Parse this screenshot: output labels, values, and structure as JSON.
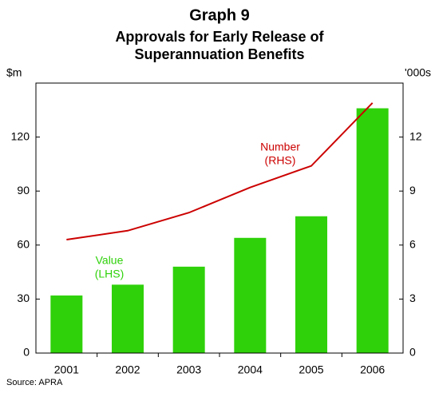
{
  "chart_data": {
    "type": "bar",
    "title": "Graph 9",
    "subtitle": [
      "Approvals for Early Release of",
      "Superannuation Benefits"
    ],
    "y_label": "$m",
    "y2_label": "'000s",
    "source": "Source: APRA",
    "categories": [
      "2001",
      "2002",
      "2003",
      "2004",
      "2005",
      "2006"
    ],
    "series": [
      {
        "name": [
          "Value",
          "(LHS)"
        ],
        "type": "bar",
        "color": "#2fd10a",
        "values": [
          32,
          38,
          48,
          64,
          76,
          136
        ]
      },
      {
        "name": [
          "Number",
          "(RHS)"
        ],
        "type": "line",
        "axis": "y2",
        "color": "#cc0000",
        "values": [
          6.3,
          6.8,
          7.8,
          9.2,
          10.4,
          13.9
        ]
      }
    ],
    "ylim": [
      0,
      150
    ],
    "yticks": [
      0,
      30,
      60,
      90,
      120
    ],
    "y2lim": [
      0,
      15
    ],
    "y2ticks": [
      0,
      3,
      6,
      9,
      12
    ],
    "grid": false
  }
}
